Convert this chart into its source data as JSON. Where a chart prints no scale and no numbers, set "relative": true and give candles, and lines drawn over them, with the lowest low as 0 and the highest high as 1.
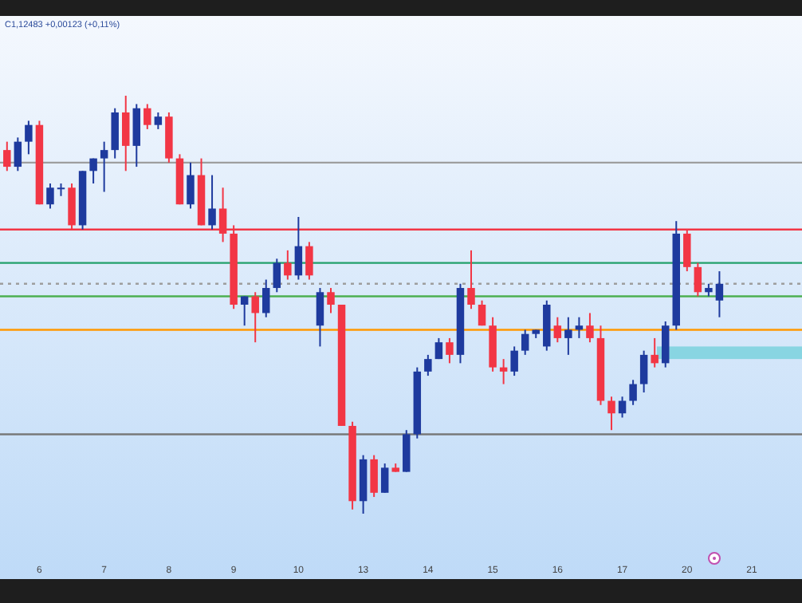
{
  "chart_data": {
    "type": "candlestick",
    "relative": true,
    "tick_labels": "x",
    "annotations": [
      "C1,12483  +0,00123 (+0,11%)"
    ],
    "colors": [
      "#f23645",
      "#1e3a9e",
      "#1e3a9e",
      "#f23645",
      "#1e3a9e",
      "#1e3a9e",
      "#f23645",
      "#1e3a9e",
      "#1e3a9e",
      "#1e3a9e",
      "#1e3a9e",
      "#f23645",
      "#1e3a9e",
      "#f23645",
      "#1e3a9e",
      "#f23645",
      "#f23645",
      "#1e3a9e",
      "#f23645",
      "#1e3a9e",
      "#f23645",
      "#f23645",
      "#1e3a9e",
      "#f23645",
      "#1e3a9e",
      "#1e3a9e",
      "#f23645",
      "#1e3a9e",
      "#f23645",
      "#1e3a9e",
      "#f23645",
      "#f23645",
      "#f23645",
      "#1e3a9e",
      "#f23645",
      "#1e3a9e",
      "#f23645",
      "#1e3a9e",
      "#1e3a9e",
      "#1e3a9e",
      "#1e3a9e",
      "#f23645",
      "#1e3a9e",
      "#f23645",
      "#f23645",
      "#f23645",
      "#f23645",
      "#1e3a9e",
      "#1e3a9e",
      "#1e3a9e",
      "#1e3a9e",
      "#f23645",
      "#1e3a9e",
      "#1e3a9e",
      "#f23645",
      "#f23645",
      "#f23645",
      "#1e3a9e",
      "#1e3a9e",
      "#1e3a9e",
      "#f23645",
      "#1e3a9e",
      "#1e3a9e",
      "#f23645",
      "#f23645",
      "#1e3a9e",
      "#1e3a9e",
      null,
      null,
      null,
      null,
      null,
      null,
      null
    ],
    "categories": [
      null,
      null,
      null,
      "6",
      null,
      null,
      null,
      null,
      null,
      "7",
      null,
      null,
      null,
      null,
      null,
      "8",
      null,
      null,
      null,
      null,
      null,
      "9",
      null,
      null,
      null,
      null,
      null,
      "10",
      null,
      null,
      null,
      null,
      null,
      "13",
      null,
      null,
      null,
      null,
      null,
      "14",
      null,
      null,
      null,
      null,
      null,
      "15",
      null,
      null,
      null,
      null,
      null,
      "16",
      null,
      null,
      null,
      null,
      null,
      "17",
      null,
      null,
      null,
      null,
      null,
      "20",
      null,
      null,
      null,
      null,
      null,
      "21",
      null,
      null,
      null,
      null
    ],
    "ohlc": [
      [
        0.87,
        0.89,
        0.82,
        0.83
      ],
      [
        0.83,
        0.9,
        0.82,
        0.89
      ],
      [
        0.89,
        0.94,
        0.86,
        0.93
      ],
      [
        0.93,
        0.94,
        0.74,
        0.74
      ],
      [
        0.74,
        0.79,
        0.73,
        0.78
      ],
      [
        0.78,
        0.79,
        0.76,
        0.78
      ],
      [
        0.78,
        0.79,
        0.68,
        0.69
      ],
      [
        0.69,
        0.82,
        0.68,
        0.82
      ],
      [
        0.82,
        0.85,
        0.79,
        0.85
      ],
      [
        0.85,
        0.89,
        0.77,
        0.87
      ],
      [
        0.87,
        0.97,
        0.85,
        0.96
      ],
      [
        0.96,
        1.0,
        0.82,
        0.88
      ],
      [
        0.88,
        0.98,
        0.83,
        0.97
      ],
      [
        0.97,
        0.98,
        0.92,
        0.93
      ],
      [
        0.93,
        0.96,
        0.92,
        0.95
      ],
      [
        0.95,
        0.96,
        0.84,
        0.85
      ],
      [
        0.85,
        0.86,
        0.74,
        0.74
      ],
      [
        0.74,
        0.84,
        0.73,
        0.81
      ],
      [
        0.81,
        0.85,
        0.69,
        0.69
      ],
      [
        0.69,
        0.81,
        0.68,
        0.73
      ],
      [
        0.73,
        0.78,
        0.65,
        0.67
      ],
      [
        0.67,
        0.69,
        0.49,
        0.5
      ],
      [
        0.5,
        0.52,
        0.45,
        0.52
      ],
      [
        0.52,
        0.53,
        0.41,
        0.48
      ],
      [
        0.48,
        0.56,
        0.47,
        0.54
      ],
      [
        0.54,
        0.61,
        0.53,
        0.6
      ],
      [
        0.6,
        0.63,
        0.56,
        0.57
      ],
      [
        0.57,
        0.71,
        0.56,
        0.64
      ],
      [
        0.64,
        0.65,
        0.56,
        0.57
      ],
      [
        0.45,
        0.54,
        0.4,
        0.53
      ],
      [
        0.53,
        0.54,
        0.48,
        0.5
      ],
      [
        0.5,
        0.5,
        0.21,
        0.21
      ],
      [
        0.21,
        0.22,
        0.01,
        0.03
      ],
      [
        0.03,
        0.14,
        0,
        0.13
      ],
      [
        0.13,
        0.14,
        0.04,
        0.05
      ],
      [
        0.05,
        0.12,
        0.05,
        0.11
      ],
      [
        0.11,
        0.12,
        0.1,
        0.1
      ],
      [
        0.1,
        0.2,
        0.1,
        0.19
      ],
      [
        0.19,
        0.35,
        0.18,
        0.34
      ],
      [
        0.34,
        0.38,
        0.33,
        0.37
      ],
      [
        0.37,
        0.42,
        0.37,
        0.41
      ],
      [
        0.41,
        0.42,
        0.36,
        0.38
      ],
      [
        0.38,
        0.55,
        0.36,
        0.54
      ],
      [
        0.54,
        0.63,
        0.49,
        0.5
      ],
      [
        0.5,
        0.51,
        0.45,
        0.45
      ],
      [
        0.45,
        0.47,
        0.34,
        0.35
      ],
      [
        0.35,
        0.37,
        0.31,
        0.34
      ],
      [
        0.34,
        0.4,
        0.33,
        0.39
      ],
      [
        0.39,
        0.44,
        0.38,
        0.43
      ],
      [
        0.43,
        0.44,
        0.42,
        0.44
      ],
      [
        0.4,
        0.51,
        0.39,
        0.5
      ],
      [
        0.45,
        0.47,
        0.41,
        0.42
      ],
      [
        0.42,
        0.47,
        0.38,
        0.44
      ],
      [
        0.44,
        0.47,
        0.42,
        0.45
      ],
      [
        0.45,
        0.48,
        0.41,
        0.42
      ],
      [
        0.42,
        0.45,
        0.26,
        0.27
      ],
      [
        0.27,
        0.28,
        0.2,
        0.24
      ],
      [
        0.24,
        0.28,
        0.23,
        0.27
      ],
      [
        0.27,
        0.32,
        0.26,
        0.31
      ],
      [
        0.31,
        0.39,
        0.29,
        0.38
      ],
      [
        0.38,
        0.42,
        0.35,
        0.36
      ],
      [
        0.36,
        0.46,
        0.35,
        0.45
      ],
      [
        0.45,
        0.7,
        0.44,
        0.67
      ],
      [
        0.67,
        0.68,
        0.58,
        0.59
      ],
      [
        0.59,
        0.6,
        0.52,
        0.53
      ],
      [
        0.53,
        0.55,
        0.52,
        0.54
      ],
      [
        0.51,
        0.58,
        0.47,
        0.55
      ],
      null,
      null,
      null,
      null,
      null,
      null,
      null
    ],
    "ref_lines": [
      {
        "axis": "y",
        "value": 0.84,
        "color": "#9e9e9e"
      },
      {
        "axis": "y",
        "value": 0.68,
        "color": "#f23645"
      },
      {
        "axis": "y",
        "value": 0.6,
        "color": "#22a06b"
      },
      {
        "axis": "y",
        "value": 0.55,
        "color": "#9e9e9e",
        "line_style": "dotted"
      },
      {
        "axis": "y",
        "value": 0.52,
        "color": "#4caf50"
      },
      {
        "axis": "y",
        "value": 0.44,
        "color": "#ff9800"
      },
      {
        "axis": "y",
        "value": 0.19,
        "color": "#787878"
      }
    ],
    "bands": [
      {
        "axis": "y",
        "from": 0.37,
        "to": 0.4,
        "color": "#7fd3df"
      }
    ]
  }
}
